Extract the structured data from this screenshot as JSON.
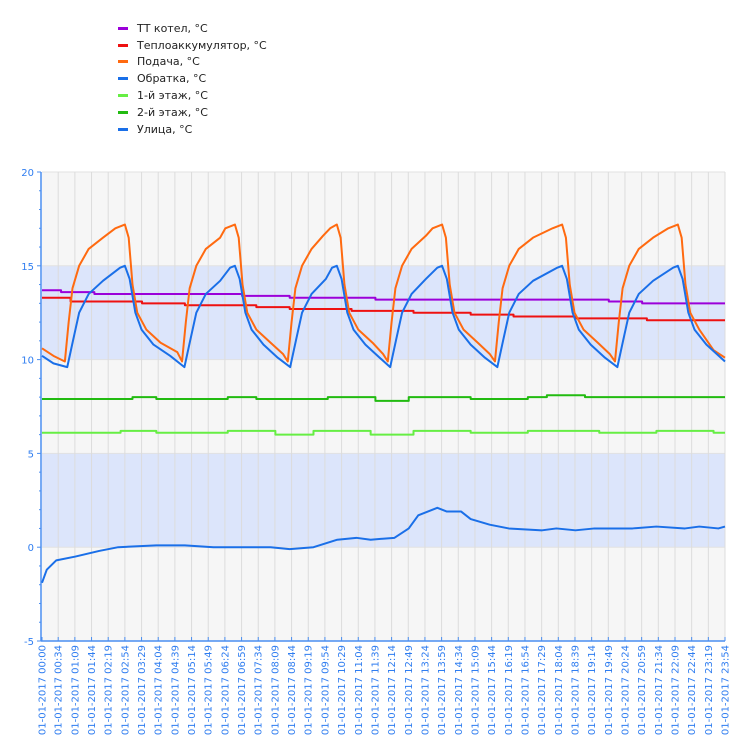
{
  "chart_data": {
    "type": "line",
    "xlabel": "",
    "ylabel": "",
    "date": "01-01-2017",
    "ylim": [
      -5,
      20
    ],
    "yticks": [
      -5,
      0,
      5,
      10,
      15,
      20
    ],
    "grid": true,
    "legend_position": "top-left",
    "bands": [
      {
        "from": 10,
        "to": 15,
        "color": "#dce5fb"
      },
      {
        "from": 0,
        "to": 5,
        "color": "#dce5fb"
      }
    ],
    "x_tick_labels": [
      "01-01-2017 00:00",
      "01-01-2017 00:34",
      "01-01-2017 01:09",
      "01-01-2017 01:44",
      "01-01-2017 02:19",
      "01-01-2017 02:54",
      "01-01-2017 03:29",
      "01-01-2017 04:04",
      "01-01-2017 04:39",
      "01-01-2017 05:14",
      "01-01-2017 05:49",
      "01-01-2017 06:24",
      "01-01-2017 06:59",
      "01-01-2017 07:34",
      "01-01-2017 08:09",
      "01-01-2017 08:44",
      "01-01-2017 09:19",
      "01-01-2017 09:54",
      "01-01-2017 10:29",
      "01-01-2017 11:04",
      "01-01-2017 11:39",
      "01-01-2017 12:14",
      "01-01-2017 12:49",
      "01-01-2017 13:24",
      "01-01-2017 13:59",
      "01-01-2017 14:34",
      "01-01-2017 15:09",
      "01-01-2017 15:44",
      "01-01-2017 16:19",
      "01-01-2017 16:54",
      "01-01-2017 17:29",
      "01-01-2017 18:04",
      "01-01-2017 18:39",
      "01-01-2017 19:14",
      "01-01-2017 19:49",
      "01-01-2017 20:24",
      "01-01-2017 20:59",
      "01-01-2017 21:34",
      "01-01-2017 22:09",
      "01-01-2017 22:44",
      "01-01-2017 23:19",
      "01-01-2017 23:54"
    ],
    "series": [
      {
        "name": "ТТ котел, °C",
        "color": "#9b00d9",
        "step": true,
        "points": [
          [
            "00:00",
            13.7
          ],
          [
            "00:40",
            13.6
          ],
          [
            "01:50",
            13.5
          ],
          [
            "07:00",
            13.4
          ],
          [
            "08:40",
            13.3
          ],
          [
            "11:40",
            13.2
          ],
          [
            "19:50",
            13.1
          ],
          [
            "21:00",
            13.0
          ],
          [
            "23:54",
            13.0
          ]
        ]
      },
      {
        "name": "Теплоаккумулятор, °C",
        "color": "#ee1111",
        "step": true,
        "points": [
          [
            "00:00",
            13.3
          ],
          [
            "01:00",
            13.1
          ],
          [
            "03:30",
            13.0
          ],
          [
            "05:00",
            12.9
          ],
          [
            "07:30",
            12.8
          ],
          [
            "08:40",
            12.7
          ],
          [
            "10:50",
            12.6
          ],
          [
            "13:00",
            12.5
          ],
          [
            "15:00",
            12.4
          ],
          [
            "16:30",
            12.3
          ],
          [
            "18:40",
            12.2
          ],
          [
            "21:10",
            12.1
          ],
          [
            "23:54",
            12.1
          ]
        ]
      },
      {
        "name": "Подача, °C",
        "color": "#ff6a10",
        "step": false,
        "points": [
          [
            "00:00",
            10.6
          ],
          [
            "00:24",
            10.2
          ],
          [
            "00:48",
            9.9
          ],
          [
            "00:56",
            12.0
          ],
          [
            "01:04",
            13.8
          ],
          [
            "01:18",
            15.0
          ],
          [
            "01:38",
            15.9
          ],
          [
            "02:08",
            16.5
          ],
          [
            "02:34",
            17.0
          ],
          [
            "02:54",
            17.2
          ],
          [
            "03:02",
            16.5
          ],
          [
            "03:10",
            14.0
          ],
          [
            "03:20",
            12.5
          ],
          [
            "03:39",
            11.6
          ],
          [
            "04:09",
            10.9
          ],
          [
            "04:44",
            10.4
          ],
          [
            "04:54",
            9.9
          ],
          [
            "05:02",
            12.0
          ],
          [
            "05:10",
            13.8
          ],
          [
            "05:24",
            15.0
          ],
          [
            "05:44",
            15.9
          ],
          [
            "06:14",
            16.5
          ],
          [
            "06:25",
            17.0
          ],
          [
            "06:45",
            17.2
          ],
          [
            "06:53",
            16.5
          ],
          [
            "07:01",
            14.0
          ],
          [
            "07:11",
            12.5
          ],
          [
            "07:30",
            11.6
          ],
          [
            "08:00",
            10.9
          ],
          [
            "08:26",
            10.3
          ],
          [
            "08:36",
            9.9
          ],
          [
            "08:44",
            12.0
          ],
          [
            "08:52",
            13.8
          ],
          [
            "09:06",
            15.0
          ],
          [
            "09:26",
            15.9
          ],
          [
            "09:50",
            16.6
          ],
          [
            "10:05",
            17.0
          ],
          [
            "10:19",
            17.2
          ],
          [
            "10:27",
            16.5
          ],
          [
            "10:35",
            14.0
          ],
          [
            "10:45",
            12.5
          ],
          [
            "11:04",
            11.6
          ],
          [
            "11:34",
            10.9
          ],
          [
            "11:56",
            10.3
          ],
          [
            "12:06",
            9.9
          ],
          [
            "12:14",
            12.0
          ],
          [
            "12:22",
            13.8
          ],
          [
            "12:36",
            15.0
          ],
          [
            "12:56",
            15.9
          ],
          [
            "13:26",
            16.6
          ],
          [
            "13:40",
            17.0
          ],
          [
            "14:00",
            17.2
          ],
          [
            "14:08",
            16.5
          ],
          [
            "14:16",
            14.0
          ],
          [
            "14:26",
            12.5
          ],
          [
            "14:45",
            11.6
          ],
          [
            "15:15",
            10.9
          ],
          [
            "15:40",
            10.3
          ],
          [
            "15:51",
            9.9
          ],
          [
            "15:59",
            12.0
          ],
          [
            "16:07",
            13.8
          ],
          [
            "16:21",
            15.0
          ],
          [
            "16:41",
            15.9
          ],
          [
            "17:11",
            16.5
          ],
          [
            "17:52",
            17.0
          ],
          [
            "18:12",
            17.2
          ],
          [
            "18:20",
            16.5
          ],
          [
            "18:28",
            14.0
          ],
          [
            "18:38",
            12.5
          ],
          [
            "18:57",
            11.6
          ],
          [
            "19:27",
            10.9
          ],
          [
            "19:52",
            10.3
          ],
          [
            "20:03",
            9.9
          ],
          [
            "20:11",
            12.0
          ],
          [
            "20:19",
            13.8
          ],
          [
            "20:33",
            15.0
          ],
          [
            "20:53",
            15.9
          ],
          [
            "21:23",
            16.5
          ],
          [
            "21:55",
            17.0
          ],
          [
            "22:15",
            17.2
          ],
          [
            "22:23",
            16.5
          ],
          [
            "22:31",
            14.0
          ],
          [
            "22:41",
            12.5
          ],
          [
            "23:00",
            11.6
          ],
          [
            "23:30",
            10.5
          ],
          [
            "23:54",
            10.1
          ]
        ]
      },
      {
        "name": "Обратка, °C",
        "color": "#1a6fe8",
        "step": false,
        "points": [
          [
            "00:00",
            10.2
          ],
          [
            "00:24",
            9.8
          ],
          [
            "00:53",
            9.6
          ],
          [
            "01:05",
            11.0
          ],
          [
            "01:18",
            12.5
          ],
          [
            "01:38",
            13.5
          ],
          [
            "02:08",
            14.2
          ],
          [
            "02:44",
            14.9
          ],
          [
            "02:54",
            15.0
          ],
          [
            "03:04",
            14.3
          ],
          [
            "03:16",
            12.5
          ],
          [
            "03:29",
            11.6
          ],
          [
            "03:54",
            10.8
          ],
          [
            "04:29",
            10.2
          ],
          [
            "04:59",
            9.6
          ],
          [
            "05:11",
            11.0
          ],
          [
            "05:24",
            12.5
          ],
          [
            "05:44",
            13.5
          ],
          [
            "06:14",
            14.2
          ],
          [
            "06:35",
            14.9
          ],
          [
            "06:45",
            15.0
          ],
          [
            "06:55",
            14.3
          ],
          [
            "07:07",
            12.5
          ],
          [
            "07:20",
            11.6
          ],
          [
            "07:45",
            10.8
          ],
          [
            "08:15",
            10.1
          ],
          [
            "08:41",
            9.6
          ],
          [
            "08:53",
            11.0
          ],
          [
            "09:06",
            12.5
          ],
          [
            "09:26",
            13.5
          ],
          [
            "09:56",
            14.3
          ],
          [
            "10:09",
            14.9
          ],
          [
            "10:19",
            15.0
          ],
          [
            "10:29",
            14.3
          ],
          [
            "10:41",
            12.5
          ],
          [
            "10:54",
            11.6
          ],
          [
            "11:19",
            10.8
          ],
          [
            "11:49",
            10.1
          ],
          [
            "12:11",
            9.6
          ],
          [
            "12:23",
            11.0
          ],
          [
            "12:36",
            12.5
          ],
          [
            "12:56",
            13.5
          ],
          [
            "13:26",
            14.3
          ],
          [
            "13:50",
            14.9
          ],
          [
            "14:00",
            15.0
          ],
          [
            "14:10",
            14.3
          ],
          [
            "14:22",
            12.5
          ],
          [
            "14:35",
            11.6
          ],
          [
            "15:00",
            10.8
          ],
          [
            "15:30",
            10.1
          ],
          [
            "15:56",
            9.6
          ],
          [
            "16:08",
            11.0
          ],
          [
            "16:21",
            12.5
          ],
          [
            "16:41",
            13.5
          ],
          [
            "17:11",
            14.2
          ],
          [
            "18:02",
            14.9
          ],
          [
            "18:12",
            15.0
          ],
          [
            "18:22",
            14.3
          ],
          [
            "18:34",
            12.5
          ],
          [
            "18:47",
            11.6
          ],
          [
            "19:12",
            10.8
          ],
          [
            "19:42",
            10.1
          ],
          [
            "20:08",
            9.6
          ],
          [
            "20:20",
            11.0
          ],
          [
            "20:33",
            12.5
          ],
          [
            "20:53",
            13.5
          ],
          [
            "21:23",
            14.2
          ],
          [
            "22:05",
            14.9
          ],
          [
            "22:15",
            15.0
          ],
          [
            "22:25",
            14.3
          ],
          [
            "22:37",
            12.5
          ],
          [
            "22:50",
            11.6
          ],
          [
            "23:15",
            10.8
          ],
          [
            "23:54",
            9.9
          ]
        ]
      },
      {
        "name": "1-й этаж, °C",
        "color": "#66ee44",
        "step": true,
        "points": [
          [
            "00:00",
            6.1
          ],
          [
            "02:45",
            6.2
          ],
          [
            "04:00",
            6.1
          ],
          [
            "06:30",
            6.2
          ],
          [
            "08:10",
            6.0
          ],
          [
            "09:30",
            6.2
          ],
          [
            "11:30",
            6.0
          ],
          [
            "13:00",
            6.2
          ],
          [
            "15:00",
            6.1
          ],
          [
            "17:00",
            6.2
          ],
          [
            "19:30",
            6.1
          ],
          [
            "21:30",
            6.2
          ],
          [
            "23:30",
            6.1
          ],
          [
            "23:54",
            6.1
          ]
        ]
      },
      {
        "name": "2-й этаж, °C",
        "color": "#22bb11",
        "step": true,
        "points": [
          [
            "00:00",
            7.9
          ],
          [
            "03:10",
            8.0
          ],
          [
            "04:00",
            7.9
          ],
          [
            "06:30",
            8.0
          ],
          [
            "07:30",
            7.9
          ],
          [
            "10:00",
            8.0
          ],
          [
            "11:40",
            7.8
          ],
          [
            "12:50",
            8.0
          ],
          [
            "15:00",
            7.9
          ],
          [
            "17:00",
            8.0
          ],
          [
            "17:40",
            8.1
          ],
          [
            "19:00",
            8.0
          ],
          [
            "23:54",
            8.0
          ]
        ]
      },
      {
        "name": "Улица, °C",
        "color": "#1a6fe8",
        "step": false,
        "points": [
          [
            "00:00",
            -1.9
          ],
          [
            "00:10",
            -1.2
          ],
          [
            "00:30",
            -0.7
          ],
          [
            "01:10",
            -0.5
          ],
          [
            "02:00",
            -0.2
          ],
          [
            "02:40",
            0.0
          ],
          [
            "04:00",
            0.1
          ],
          [
            "05:00",
            0.1
          ],
          [
            "06:00",
            0.0
          ],
          [
            "08:00",
            0.0
          ],
          [
            "08:40",
            -0.1
          ],
          [
            "09:30",
            0.0
          ],
          [
            "10:20",
            0.4
          ],
          [
            "11:00",
            0.5
          ],
          [
            "11:30",
            0.4
          ],
          [
            "12:20",
            0.5
          ],
          [
            "12:50",
            1.0
          ],
          [
            "13:10",
            1.7
          ],
          [
            "13:30",
            1.9
          ],
          [
            "13:50",
            2.1
          ],
          [
            "14:10",
            1.9
          ],
          [
            "14:40",
            1.9
          ],
          [
            "15:00",
            1.5
          ],
          [
            "15:40",
            1.2
          ],
          [
            "16:20",
            1.0
          ],
          [
            "17:30",
            0.9
          ],
          [
            "18:00",
            1.0
          ],
          [
            "18:40",
            0.9
          ],
          [
            "19:20",
            1.0
          ],
          [
            "20:40",
            1.0
          ],
          [
            "21:30",
            1.1
          ],
          [
            "22:30",
            1.0
          ],
          [
            "23:00",
            1.1
          ],
          [
            "23:40",
            1.0
          ],
          [
            "23:54",
            1.1
          ]
        ]
      }
    ]
  }
}
